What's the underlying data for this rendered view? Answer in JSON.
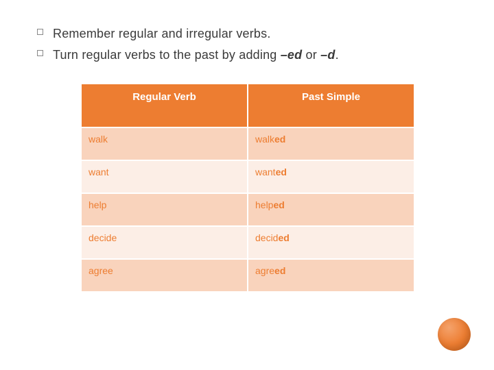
{
  "bullets": [
    {
      "text": "Remember regular and irregular verbs."
    },
    {
      "prefix": "Turn regular verbs to the past by adding ",
      "em1": "–ed",
      "mid": " or ",
      "em2": "–d",
      "suffix": "."
    }
  ],
  "table": {
    "columns": [
      "Regular Verb",
      "Past Simple"
    ],
    "rows": [
      {
        "base": "walk",
        "past_root": "walk",
        "past_suffix": "ed"
      },
      {
        "base": "want",
        "past_root": "want",
        "past_suffix": "ed"
      },
      {
        "base": "help",
        "past_root": "help",
        "past_suffix": "ed"
      },
      {
        "base": "decide",
        "past_root": "decid",
        "past_suffix": "ed"
      },
      {
        "base": "agree",
        "past_root": "agre",
        "past_suffix": "ed"
      }
    ],
    "header_bg": "#ed7d31",
    "header_fg": "#ffffff",
    "row_dark_bg": "#f9d3bc",
    "row_light_bg": "#fceee6",
    "cell_fg": "#ed7d31",
    "border_color": "#ffffff"
  },
  "decor": {
    "circle_color": "#ed7d31"
  }
}
